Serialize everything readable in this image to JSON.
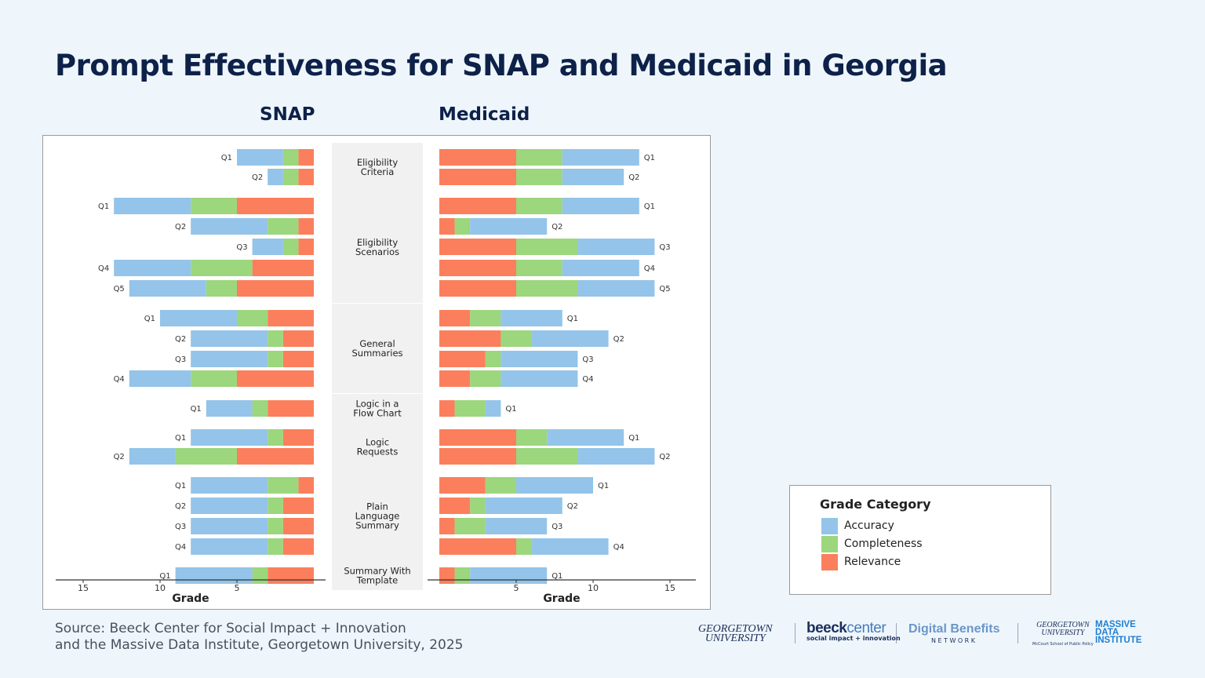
{
  "title": "Prompt Effectiveness for SNAP and Medicaid in Georgia",
  "source": {
    "line1": "Source: Beeck Center for Social Impact + Innovation",
    "line2": "and the Massive Data Institute, Georgetown University, 2025"
  },
  "colors": {
    "Accuracy": "#94c4e9",
    "Completeness": "#9cd67d",
    "Relevance": "#fb7f5c",
    "band": "#f1f1f1",
    "title": "#0d2149"
  },
  "legend": {
    "title": "Grade Category",
    "items": [
      "Accuracy",
      "Completeness",
      "Relevance"
    ]
  },
  "logos": {
    "georgetown": [
      "GEORGETOWN",
      "UNIVERSITY"
    ],
    "beeck": {
      "main": "beeck",
      "accent": "center",
      "tagline": "social impact + innovation"
    },
    "dbn": {
      "main": "Digital Benefits",
      "sub": "NETWORK"
    },
    "mdi": {
      "gu": [
        "GEORGETOWN",
        "UNIVERSITY"
      ],
      "school": "McCourt School of Public Policy",
      "name": [
        "MASSIVE",
        "DATA",
        "INSTITUTE"
      ]
    }
  },
  "chart_data": {
    "type": "bar",
    "orientation": "horizontal-stacked-diverging",
    "series_names": [
      "Accuracy",
      "Completeness",
      "Relevance"
    ],
    "xlabel": "Grade",
    "xticks": {
      "SNAP": [
        15,
        10,
        5
      ],
      "Medicaid": [
        5,
        10,
        15
      ]
    },
    "xlim": [
      0,
      16
    ],
    "panels": [
      {
        "name": "SNAP",
        "direction": "left",
        "groups": [
          {
            "label": "Eligibility Criteria",
            "rows": [
              {
                "q": "Q1",
                "Accuracy": 3,
                "Completeness": 1,
                "Relevance": 1
              },
              {
                "q": "Q2",
                "Accuracy": 1,
                "Completeness": 1,
                "Relevance": 1
              }
            ]
          },
          {
            "label": "Eligibility Scenarios",
            "rows": [
              {
                "q": "Q1",
                "Accuracy": 5,
                "Completeness": 3,
                "Relevance": 5
              },
              {
                "q": "Q2",
                "Accuracy": 5,
                "Completeness": 2,
                "Relevance": 1
              },
              {
                "q": "Q3",
                "Accuracy": 2,
                "Completeness": 1,
                "Relevance": 1
              },
              {
                "q": "Q4",
                "Accuracy": 5,
                "Completeness": 4,
                "Relevance": 4
              },
              {
                "q": "Q5",
                "Accuracy": 5,
                "Completeness": 2,
                "Relevance": 5
              }
            ]
          },
          {
            "label": "General Summaries",
            "rows": [
              {
                "q": "Q1",
                "Accuracy": 5,
                "Completeness": 2,
                "Relevance": 3
              },
              {
                "q": "Q2",
                "Accuracy": 5,
                "Completeness": 1,
                "Relevance": 2
              },
              {
                "q": "Q3",
                "Accuracy": 5,
                "Completeness": 1,
                "Relevance": 2
              },
              {
                "q": "Q4",
                "Accuracy": 4,
                "Completeness": 3,
                "Relevance": 5
              }
            ]
          },
          {
            "label": "Logic in a Flow Chart",
            "rows": [
              {
                "q": "Q1",
                "Accuracy": 3,
                "Completeness": 1,
                "Relevance": 3
              }
            ]
          },
          {
            "label": "Logic Requests",
            "rows": [
              {
                "q": "Q1",
                "Accuracy": 5,
                "Completeness": 1,
                "Relevance": 2
              },
              {
                "q": "Q2",
                "Accuracy": 3,
                "Completeness": 4,
                "Relevance": 5
              }
            ]
          },
          {
            "label": "Plain Language Summary",
            "rows": [
              {
                "q": "Q1",
                "Accuracy": 5,
                "Completeness": 2,
                "Relevance": 1
              },
              {
                "q": "Q2",
                "Accuracy": 5,
                "Completeness": 1,
                "Relevance": 2
              },
              {
                "q": "Q3",
                "Accuracy": 5,
                "Completeness": 1,
                "Relevance": 2
              },
              {
                "q": "Q4",
                "Accuracy": 5,
                "Completeness": 1,
                "Relevance": 2
              }
            ]
          },
          {
            "label": "Summary With Template",
            "rows": [
              {
                "q": "Q1",
                "Accuracy": 5,
                "Completeness": 1,
                "Relevance": 3
              }
            ]
          }
        ]
      },
      {
        "name": "Medicaid",
        "direction": "right",
        "groups": [
          {
            "label": "Eligibility Criteria",
            "rows": [
              {
                "q": "Q1",
                "Relevance": 5,
                "Completeness": 3,
                "Accuracy": 5
              },
              {
                "q": "Q2",
                "Relevance": 5,
                "Completeness": 3,
                "Accuracy": 4
              }
            ]
          },
          {
            "label": "Eligibility Scenarios",
            "rows": [
              {
                "q": "Q1",
                "Relevance": 5,
                "Completeness": 3,
                "Accuracy": 5
              },
              {
                "q": "Q2",
                "Relevance": 1,
                "Completeness": 1,
                "Accuracy": 5
              },
              {
                "q": "Q3",
                "Relevance": 5,
                "Completeness": 4,
                "Accuracy": 5
              },
              {
                "q": "Q4",
                "Relevance": 5,
                "Completeness": 3,
                "Accuracy": 5
              },
              {
                "q": "Q5",
                "Relevance": 5,
                "Completeness": 4,
                "Accuracy": 5
              }
            ]
          },
          {
            "label": "General Summaries",
            "rows": [
              {
                "q": "Q1",
                "Relevance": 2,
                "Completeness": 2,
                "Accuracy": 4
              },
              {
                "q": "Q2",
                "Relevance": 4,
                "Completeness": 2,
                "Accuracy": 5
              },
              {
                "q": "Q3",
                "Relevance": 3,
                "Completeness": 1,
                "Accuracy": 5
              },
              {
                "q": "Q4",
                "Relevance": 2,
                "Completeness": 2,
                "Accuracy": 5
              }
            ]
          },
          {
            "label": "Logic in a Flow Chart",
            "rows": [
              {
                "q": "Q1",
                "Relevance": 1,
                "Completeness": 2,
                "Accuracy": 1
              }
            ]
          },
          {
            "label": "Logic Requests",
            "rows": [
              {
                "q": "Q1",
                "Relevance": 5,
                "Completeness": 2,
                "Accuracy": 5
              },
              {
                "q": "Q2",
                "Relevance": 5,
                "Completeness": 4,
                "Accuracy": 5
              }
            ]
          },
          {
            "label": "Plain Language Summary",
            "rows": [
              {
                "q": "Q1",
                "Relevance": 3,
                "Completeness": 2,
                "Accuracy": 5
              },
              {
                "q": "Q2",
                "Relevance": 2,
                "Completeness": 1,
                "Accuracy": 5
              },
              {
                "q": "Q3",
                "Relevance": 1,
                "Completeness": 2,
                "Accuracy": 4
              },
              {
                "q": "Q4",
                "Relevance": 5,
                "Completeness": 1,
                "Accuracy": 5
              }
            ]
          },
          {
            "label": "Summary With Template",
            "rows": [
              {
                "q": "Q1",
                "Relevance": 1,
                "Completeness": 1,
                "Accuracy": 5
              }
            ]
          }
        ]
      }
    ]
  }
}
